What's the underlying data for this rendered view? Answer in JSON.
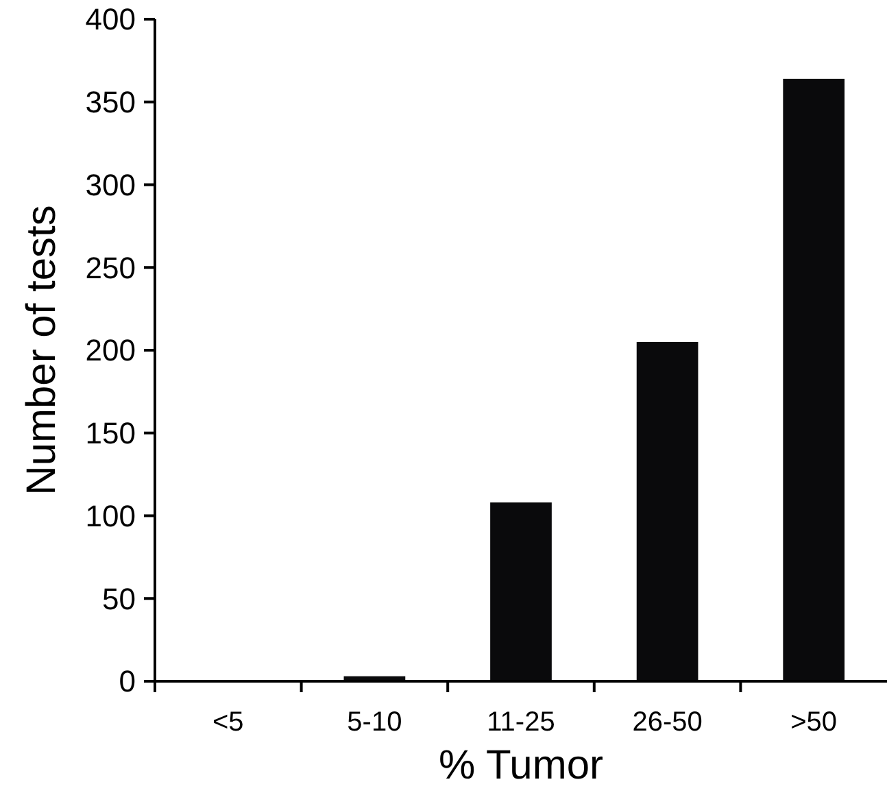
{
  "chart_data": {
    "type": "bar",
    "xlabel": "% Tumor",
    "ylabel": "Number of tests",
    "categories": [
      "<5",
      "5-10",
      "11-25",
      "26-50",
      ">50"
    ],
    "values": [
      0,
      3,
      108,
      205,
      364
    ],
    "color": "#0a0a0c",
    "ylim": [
      0,
      400
    ],
    "yticks": [
      0,
      50,
      100,
      150,
      200,
      250,
      300,
      350,
      400
    ],
    "grid": false
  }
}
